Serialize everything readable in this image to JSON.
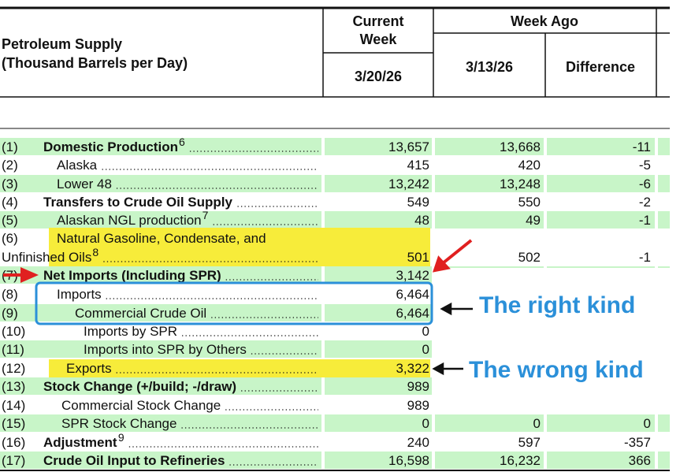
{
  "header": {
    "title_lines": [
      "Petroleum Supply",
      "(Thousand Barrels per Day)"
    ],
    "current_week_lines": [
      "Current",
      "Week"
    ],
    "current_date": "3/20/26",
    "week_ago": "Week Ago",
    "week_ago_date": "3/13/26",
    "difference": "Difference"
  },
  "rows": [
    {
      "num": "(1)",
      "label": "Domestic Production",
      "sup": "6",
      "current": "13,657",
      "week_ago": "13,668",
      "difference": "-11"
    },
    {
      "num": "(2)",
      "label": "Alaska",
      "current": "415",
      "week_ago": "420",
      "difference": "-5"
    },
    {
      "num": "(3)",
      "label": "Lower 48",
      "current": "13,242",
      "week_ago": "13,248",
      "difference": "-6"
    },
    {
      "num": "(4)",
      "label": "Transfers to Crude Oil Supply",
      "current": "549",
      "week_ago": "550",
      "difference": "-2"
    },
    {
      "num": "(5)",
      "label": "Alaskan NGL production",
      "sup": "7",
      "current": "48",
      "week_ago": "49",
      "difference": "-1"
    },
    {
      "num": "(6)",
      "label_lines": [
        "Natural Gasoline, Condensate, and",
        "Unfinished Oils"
      ],
      "sup": "8",
      "current": "501",
      "week_ago": "502",
      "difference": "-1"
    },
    {
      "num": "(7)",
      "label": "Net Imports (Including SPR)",
      "current": "3,142"
    },
    {
      "num": "(8)",
      "label": "Imports",
      "current": "6,464"
    },
    {
      "num": "(9)",
      "label": "Commercial Crude Oil",
      "current": "6,464"
    },
    {
      "num": "(10)",
      "label": "Imports by SPR",
      "current": "0"
    },
    {
      "num": "(11)",
      "label": "Imports into SPR by Others",
      "current": "0"
    },
    {
      "num": "(12)",
      "label": "Exports",
      "current": "3,322"
    },
    {
      "num": "(13)",
      "label": "Stock Change (+/build; -/draw)",
      "current": "989"
    },
    {
      "num": "(14)",
      "label": "Commercial Stock Change",
      "current": "989"
    },
    {
      "num": "(15)",
      "label": "SPR Stock Change",
      "current": "0",
      "week_ago": "0",
      "difference": "0"
    },
    {
      "num": "(16)",
      "label": "Adjustment",
      "sup": "9",
      "current": "240",
      "week_ago": "597",
      "difference": "-357"
    },
    {
      "num": "(17)",
      "label": "Crude Oil Input to Refineries",
      "current": "16,598",
      "week_ago": "16,232",
      "difference": "366"
    }
  ],
  "annotations": {
    "right": "The right kind",
    "wrong": "The wrong kind"
  }
}
